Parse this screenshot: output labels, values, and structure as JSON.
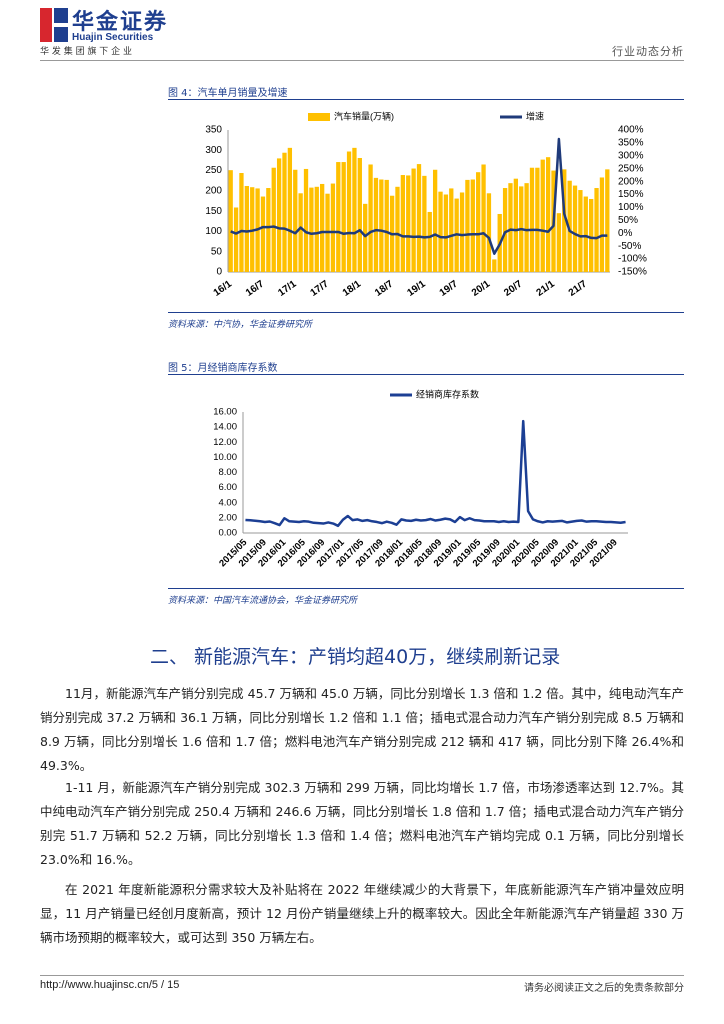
{
  "header": {
    "brand_cn": "华金证券",
    "brand_en": "Huajin Securities",
    "tagline": "华 发 集 团 旗 下 企 业",
    "report_type": "行业动态分析"
  },
  "chart_data": [
    {
      "type": "bar",
      "title": "图 4：汽车单月销量及增速",
      "source": "资料来源：中汽协，华金证券研究所",
      "categories": [
        "16/1",
        null,
        null,
        null,
        null,
        null,
        "16/7",
        null,
        null,
        null,
        null,
        null,
        "17/1",
        null,
        null,
        null,
        null,
        null,
        "17/7",
        null,
        null,
        null,
        null,
        null,
        "18/1",
        null,
        null,
        null,
        null,
        null,
        "18/7",
        null,
        null,
        null,
        null,
        null,
        "19/1",
        null,
        null,
        null,
        null,
        null,
        "19/7",
        null,
        null,
        null,
        null,
        null,
        "20/1",
        null,
        null,
        null,
        null,
        null,
        "20/7",
        null,
        null,
        null,
        null,
        null,
        "21/1",
        null,
        null,
        null,
        null,
        null,
        "21/7",
        null,
        null,
        null,
        null
      ],
      "series": [
        {
          "name": "汽车销量(万辆)",
          "color": "#ffc000",
          "type": "bar",
          "values": [
            251,
            159,
            244,
            212,
            209,
            206,
            186,
            207,
            257,
            280,
            294,
            306,
            252,
            194,
            254,
            208,
            210,
            217,
            193,
            218,
            271,
            271,
            297,
            306,
            281,
            168,
            265,
            232,
            228,
            227,
            188,
            210,
            239,
            238,
            255,
            266,
            237,
            148,
            252,
            198,
            191,
            206,
            181,
            196,
            227,
            228,
            246,
            265,
            194,
            31,
            143,
            207,
            219,
            230,
            211,
            219,
            257,
            257,
            277,
            283,
            250,
            145,
            253,
            225,
            213,
            202,
            186,
            180,
            207,
            233,
            253
          ]
        },
        {
          "name": "增速",
          "color": "#1f3a7a",
          "type": "line",
          "axis": "y2",
          "values": [
            7,
            -1,
            9,
            7,
            10,
            15,
            24,
            24,
            26,
            19,
            18,
            10,
            0,
            22,
            4,
            -2,
            0,
            5,
            5,
            5,
            5,
            -2,
            1,
            0,
            12,
            -11,
            5,
            12,
            10,
            5,
            -4,
            -3,
            -12,
            -12,
            -14,
            -13,
            -16,
            -14,
            -5,
            -15,
            -16,
            -10,
            -4,
            -7,
            -5,
            -4,
            -4,
            0,
            -18,
            -79,
            -43,
            4,
            14,
            12,
            16,
            12,
            13,
            13,
            10,
            6,
            29,
            365,
            75,
            9,
            -3,
            -12,
            -11,
            -18,
            -19,
            -9,
            -9
          ]
        }
      ],
      "ylim": [
        0,
        350
      ],
      "yticks": [
        0,
        50,
        100,
        150,
        200,
        250,
        300,
        350
      ],
      "y2lim": [
        -150,
        400
      ],
      "y2ticks": [
        {
          "value": -150,
          "label": "-150%"
        },
        {
          "value": -100,
          "label": "-100%"
        },
        {
          "value": -50,
          "label": "-50%"
        },
        {
          "value": 0,
          "label": "0%"
        },
        {
          "value": 50,
          "label": "50%"
        },
        {
          "value": 100,
          "label": "100%"
        },
        {
          "value": 150,
          "label": "150%"
        },
        {
          "value": 200,
          "label": "200%"
        },
        {
          "value": 250,
          "label": "250%"
        },
        {
          "value": 300,
          "label": "300%"
        },
        {
          "value": 350,
          "label": "350%"
        },
        {
          "value": 400,
          "label": "400%"
        }
      ],
      "grid": false,
      "legend": "top"
    },
    {
      "type": "line",
      "title": "图 5：月经销商库存系数",
      "source": "资料来源：中国汽车流通协会，华金证券研究所",
      "categories": [
        "2015/05",
        null,
        null,
        null,
        "2015/09",
        null,
        null,
        null,
        "2016/01",
        null,
        null,
        null,
        "2016/05",
        null,
        null,
        null,
        "2016/09",
        null,
        null,
        null,
        "2017/01",
        null,
        null,
        null,
        "2017/05",
        null,
        null,
        null,
        "2017/09",
        null,
        null,
        null,
        "2018/01",
        null,
        null,
        null,
        "2018/05",
        null,
        null,
        null,
        "2018/09",
        null,
        null,
        null,
        "2019/01",
        null,
        null,
        null,
        "2019/05",
        null,
        null,
        null,
        "2019/09",
        null,
        null,
        null,
        "2020/01",
        null,
        null,
        null,
        "2020/05",
        null,
        null,
        null,
        "2020/09",
        null,
        null,
        null,
        "2021/01",
        null,
        null,
        null,
        "2021/05",
        null,
        null,
        null,
        "2021/09",
        null,
        null
      ],
      "series": [
        {
          "name": "经销商库存系数",
          "color": "#1c3f94",
          "type": "line",
          "values": [
            1.72,
            1.68,
            1.62,
            1.55,
            1.45,
            1.52,
            1.3,
            1.05,
            1.95,
            1.55,
            1.5,
            1.45,
            1.55,
            1.5,
            1.35,
            1.3,
            1.25,
            1.4,
            1.25,
            0.95,
            1.75,
            2.25,
            1.7,
            1.8,
            1.6,
            1.7,
            1.55,
            1.45,
            1.3,
            1.5,
            1.35,
            1.1,
            1.8,
            1.65,
            1.6,
            1.75,
            1.65,
            1.7,
            1.85,
            1.65,
            1.75,
            1.9,
            1.8,
            1.45,
            2.1,
            1.7,
            1.95,
            1.7,
            1.65,
            1.55,
            1.55,
            1.55,
            1.45,
            1.55,
            1.45,
            1.5,
            1.45,
            14.8,
            2.9,
            1.8,
            1.55,
            1.4,
            1.55,
            1.5,
            1.55,
            1.6,
            1.4,
            1.5,
            1.6,
            1.65,
            1.5,
            1.55,
            1.55,
            1.5,
            1.45,
            1.45,
            1.4,
            1.35,
            1.45
          ]
        }
      ],
      "ylim": [
        0,
        16
      ],
      "yticks": [
        {
          "value": 0,
          "label": "0.00"
        },
        {
          "value": 2,
          "label": "2.00"
        },
        {
          "value": 4,
          "label": "4.00"
        },
        {
          "value": 6,
          "label": "6.00"
        },
        {
          "value": 8,
          "label": "8.00"
        },
        {
          "value": 10,
          "label": "10.00"
        },
        {
          "value": 12,
          "label": "12.00"
        },
        {
          "value": 14,
          "label": "14.00"
        },
        {
          "value": 16,
          "label": "16.00"
        }
      ],
      "grid": false,
      "legend": "top"
    }
  ],
  "section_title": "二、 新能源汽车：产销均超40万，继续刷新记录",
  "paragraphs": [
    "11月，新能源汽车产销分别完成 45.7 万辆和 45.0 万辆，同比分别增长 1.3 倍和 1.2 倍。其中，纯电动汽车产销分别完成 37.2 万辆和 36.1 万辆，同比分别增长 1.2 倍和 1.1 倍；插电式混合动力汽车产销分别完成 8.5 万辆和 8.9 万辆，同比分别增长 1.6 倍和 1.7 倍；燃料电池汽车产销分别完成 212 辆和 417 辆，同比分别下降 26.4%和 49.3%。",
    "1-11 月，新能源汽车产销分别完成 302.3 万辆和 299 万辆，同比均增长 1.7 倍，市场渗透率达到 12.7%。其中纯电动汽车产销分别完成 250.4 万辆和 246.6 万辆，同比分别增长 1.8 倍和 1.7 倍；插电式混合动力汽车产销分别完 51.7 万辆和 52.2 万辆，同比分别增长 1.3 倍和 1.4 倍；燃料电池汽车产销均完成 0.1 万辆，同比分别增长 23.0%和 16.%。",
    "在 2021 年度新能源积分需求较大及补贴将在 2022 年继续减少的大背景下，年底新能源汽车产销冲量效应明显，11 月产销量已经创月度新高，预计 12 月份产销量继续上升的概率较大。因此全年新能源汽车产销量超 330 万辆市场预期的概率较大，或可达到 350 万辆左右。"
  ],
  "footer": {
    "url": "http://www.huajinsc.cn/5 / 15",
    "disclaimer": "请务必阅读正文之后的免责条款部分"
  }
}
